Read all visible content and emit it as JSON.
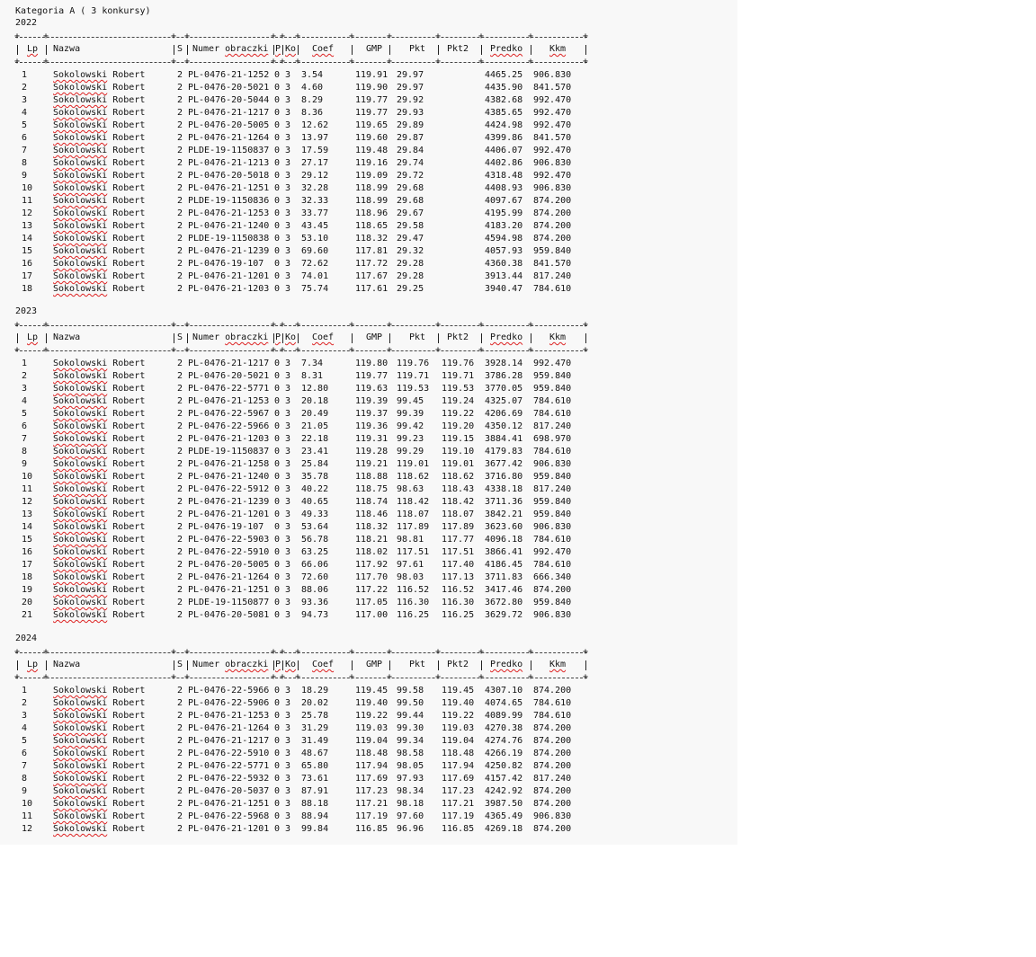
{
  "title": "Kategoria A ( 3 konkursy)",
  "headers": [
    "Lp",
    "Nazwa",
    "S",
    "Numer obraczki",
    "P",
    "Ko",
    "Coef",
    "GMP",
    "Pkt",
    "Pkt2",
    "Predko",
    "Kkm"
  ],
  "sections": [
    {
      "year": "2022",
      "rows": [
        [
          "1",
          "Sokolowski Robert",
          "2",
          "PL-0476-21-1252",
          "0",
          "3",
          "3.54",
          "119.91",
          "29.97",
          "",
          "4465.25",
          "906.830"
        ],
        [
          "2",
          "Sokolowski Robert",
          "2",
          "PL-0476-20-5021",
          "0",
          "3",
          "4.60",
          "119.90",
          "29.97",
          "",
          "4435.90",
          "841.570"
        ],
        [
          "3",
          "Sokolowski Robert",
          "2",
          "PL-0476-20-5044",
          "0",
          "3",
          "8.29",
          "119.77",
          "29.92",
          "",
          "4382.68",
          "992.470"
        ],
        [
          "4",
          "Sokolowski Robert",
          "2",
          "PL-0476-21-1217",
          "0",
          "3",
          "8.36",
          "119.77",
          "29.93",
          "",
          "4385.65",
          "992.470"
        ],
        [
          "5",
          "Sokolowski Robert",
          "2",
          "PL-0476-20-5005",
          "0",
          "3",
          "12.62",
          "119.65",
          "29.89",
          "",
          "4424.98",
          "992.470"
        ],
        [
          "6",
          "Sokolowski Robert",
          "2",
          "PL-0476-21-1264",
          "0",
          "3",
          "13.97",
          "119.60",
          "29.87",
          "",
          "4399.86",
          "841.570"
        ],
        [
          "7",
          "Sokolowski Robert",
          "2",
          "PLDE-19-1150837",
          "0",
          "3",
          "17.59",
          "119.48",
          "29.84",
          "",
          "4406.07",
          "992.470"
        ],
        [
          "8",
          "Sokolowski Robert",
          "2",
          "PL-0476-21-1213",
          "0",
          "3",
          "27.17",
          "119.16",
          "29.74",
          "",
          "4402.86",
          "906.830"
        ],
        [
          "9",
          "Sokolowski Robert",
          "2",
          "PL-0476-20-5018",
          "0",
          "3",
          "29.12",
          "119.09",
          "29.72",
          "",
          "4318.48",
          "992.470"
        ],
        [
          "10",
          "Sokolowski Robert",
          "2",
          "PL-0476-21-1251",
          "0",
          "3",
          "32.28",
          "118.99",
          "29.68",
          "",
          "4408.93",
          "906.830"
        ],
        [
          "11",
          "Sokolowski Robert",
          "2",
          "PLDE-19-1150836",
          "0",
          "3",
          "32.33",
          "118.99",
          "29.68",
          "",
          "4097.67",
          "874.200"
        ],
        [
          "12",
          "Sokolowski Robert",
          "2",
          "PL-0476-21-1253",
          "0",
          "3",
          "33.77",
          "118.96",
          "29.67",
          "",
          "4195.99",
          "874.200"
        ],
        [
          "13",
          "Sokolowski Robert",
          "2",
          "PL-0476-21-1240",
          "0",
          "3",
          "43.45",
          "118.65",
          "29.58",
          "",
          "4183.20",
          "874.200"
        ],
        [
          "14",
          "Sokolowski Robert",
          "2",
          "PLDE-19-1150838",
          "0",
          "3",
          "53.10",
          "118.32",
          "29.47",
          "",
          "4594.98",
          "874.200"
        ],
        [
          "15",
          "Sokolowski Robert",
          "2",
          "PL-0476-21-1239",
          "0",
          "3",
          "69.60",
          "117.81",
          "29.32",
          "",
          "4057.93",
          "959.840"
        ],
        [
          "16",
          "Sokolowski Robert",
          "2",
          "PL-0476-19-107",
          "0",
          "3",
          "72.62",
          "117.72",
          "29.28",
          "",
          "4360.38",
          "841.570"
        ],
        [
          "17",
          "Sokolowski Robert",
          "2",
          "PL-0476-21-1201",
          "0",
          "3",
          "74.01",
          "117.67",
          "29.28",
          "",
          "3913.44",
          "817.240"
        ],
        [
          "18",
          "Sokolowski Robert",
          "2",
          "PL-0476-21-1203",
          "0",
          "3",
          "75.74",
          "117.61",
          "29.25",
          "",
          "3940.47",
          "784.610"
        ]
      ]
    },
    {
      "year": "2023",
      "rows": [
        [
          "1",
          "Sokolowski Robert",
          "2",
          "PL-0476-21-1217",
          "0",
          "3",
          "7.34",
          "119.80",
          "119.76",
          "119.76",
          "3928.14",
          "992.470"
        ],
        [
          "2",
          "Sokolowski Robert",
          "2",
          "PL-0476-20-5021",
          "0",
          "3",
          "8.31",
          "119.77",
          "119.71",
          "119.71",
          "3786.28",
          "959.840"
        ],
        [
          "3",
          "Sokolowski Robert",
          "2",
          "PL-0476-22-5771",
          "0",
          "3",
          "12.80",
          "119.63",
          "119.53",
          "119.53",
          "3770.05",
          "959.840"
        ],
        [
          "4",
          "Sokolowski Robert",
          "2",
          "PL-0476-21-1253",
          "0",
          "3",
          "20.18",
          "119.39",
          "99.45",
          "119.24",
          "4325.07",
          "784.610"
        ],
        [
          "5",
          "Sokolowski Robert",
          "2",
          "PL-0476-22-5967",
          "0",
          "3",
          "20.49",
          "119.37",
          "99.39",
          "119.22",
          "4206.69",
          "784.610"
        ],
        [
          "6",
          "Sokolowski Robert",
          "2",
          "PL-0476-22-5966",
          "0",
          "3",
          "21.05",
          "119.36",
          "99.42",
          "119.20",
          "4350.12",
          "817.240"
        ],
        [
          "7",
          "Sokolowski Robert",
          "2",
          "PL-0476-21-1203",
          "0",
          "3",
          "22.18",
          "119.31",
          "99.23",
          "119.15",
          "3884.41",
          "698.970"
        ],
        [
          "8",
          "Sokolowski Robert",
          "2",
          "PLDE-19-1150837",
          "0",
          "3",
          "23.41",
          "119.28",
          "99.29",
          "119.10",
          "4179.83",
          "784.610"
        ],
        [
          "9",
          "Sokolowski Robert",
          "2",
          "PL-0476-21-1258",
          "0",
          "3",
          "25.84",
          "119.21",
          "119.01",
          "119.01",
          "3677.42",
          "906.830"
        ],
        [
          "10",
          "Sokolowski Robert",
          "2",
          "PL-0476-21-1240",
          "0",
          "3",
          "35.78",
          "118.88",
          "118.62",
          "118.62",
          "3716.80",
          "959.840"
        ],
        [
          "11",
          "Sokolowski Robert",
          "2",
          "PL-0476-22-5912",
          "0",
          "3",
          "40.22",
          "118.75",
          "98.63",
          "118.43",
          "4338.18",
          "817.240"
        ],
        [
          "12",
          "Sokolowski Robert",
          "2",
          "PL-0476-21-1239",
          "0",
          "3",
          "40.65",
          "118.74",
          "118.42",
          "118.42",
          "3711.36",
          "959.840"
        ],
        [
          "13",
          "Sokolowski Robert",
          "2",
          "PL-0476-21-1201",
          "0",
          "3",
          "49.33",
          "118.46",
          "118.07",
          "118.07",
          "3842.21",
          "959.840"
        ],
        [
          "14",
          "Sokolowski Robert",
          "2",
          "PL-0476-19-107",
          "0",
          "3",
          "53.64",
          "118.32",
          "117.89",
          "117.89",
          "3623.60",
          "906.830"
        ],
        [
          "15",
          "Sokolowski Robert",
          "2",
          "PL-0476-22-5903",
          "0",
          "3",
          "56.78",
          "118.21",
          "98.81",
          "117.77",
          "4096.18",
          "784.610"
        ],
        [
          "16",
          "Sokolowski Robert",
          "2",
          "PL-0476-22-5910",
          "0",
          "3",
          "63.25",
          "118.02",
          "117.51",
          "117.51",
          "3866.41",
          "992.470"
        ],
        [
          "17",
          "Sokolowski Robert",
          "2",
          "PL-0476-20-5005",
          "0",
          "3",
          "66.06",
          "117.92",
          "97.61",
          "117.40",
          "4186.45",
          "784.610"
        ],
        [
          "18",
          "Sokolowski Robert",
          "2",
          "PL-0476-21-1264",
          "0",
          "3",
          "72.60",
          "117.70",
          "98.03",
          "117.13",
          "3711.83",
          "666.340"
        ],
        [
          "19",
          "Sokolowski Robert",
          "2",
          "PL-0476-21-1251",
          "0",
          "3",
          "88.06",
          "117.22",
          "116.52",
          "116.52",
          "3417.46",
          "874.200"
        ],
        [
          "20",
          "Sokolowski Robert",
          "2",
          "PLDE-19-1150877",
          "0",
          "3",
          "93.36",
          "117.05",
          "116.30",
          "116.30",
          "3672.80",
          "959.840"
        ],
        [
          "21",
          "Sokolowski Robert",
          "2",
          "PL-0476-20-5081",
          "0",
          "3",
          "94.73",
          "117.00",
          "116.25",
          "116.25",
          "3629.72",
          "906.830"
        ]
      ]
    },
    {
      "year": "2024",
      "rows": [
        [
          "1",
          "Sokolowski Robert",
          "2",
          "PL-0476-22-5966",
          "0",
          "3",
          "18.29",
          "119.45",
          "99.58",
          "119.45",
          "4307.10",
          "874.200"
        ],
        [
          "2",
          "Sokolowski Robert",
          "2",
          "PL-0476-22-5906",
          "0",
          "3",
          "20.02",
          "119.40",
          "99.50",
          "119.40",
          "4074.65",
          "784.610"
        ],
        [
          "3",
          "Sokolowski Robert",
          "2",
          "PL-0476-21-1253",
          "0",
          "3",
          "25.78",
          "119.22",
          "99.44",
          "119.22",
          "4089.99",
          "784.610"
        ],
        [
          "4",
          "Sokolowski Robert",
          "2",
          "PL-0476-21-1264",
          "0",
          "3",
          "31.29",
          "119.03",
          "99.30",
          "119.03",
          "4270.38",
          "874.200"
        ],
        [
          "5",
          "Sokolowski Robert",
          "2",
          "PL-0476-21-1217",
          "0",
          "3",
          "31.49",
          "119.04",
          "99.34",
          "119.04",
          "4274.76",
          "874.200"
        ],
        [
          "6",
          "Sokolowski Robert",
          "2",
          "PL-0476-22-5910",
          "0",
          "3",
          "48.67",
          "118.48",
          "98.58",
          "118.48",
          "4266.19",
          "874.200"
        ],
        [
          "7",
          "Sokolowski Robert",
          "2",
          "PL-0476-22-5771",
          "0",
          "3",
          "65.80",
          "117.94",
          "98.05",
          "117.94",
          "4250.82",
          "874.200"
        ],
        [
          "8",
          "Sokolowski Robert",
          "2",
          "PL-0476-22-5932",
          "0",
          "3",
          "73.61",
          "117.69",
          "97.93",
          "117.69",
          "4157.42",
          "817.240"
        ],
        [
          "9",
          "Sokolowski Robert",
          "2",
          "PL-0476-20-5037",
          "0",
          "3",
          "87.91",
          "117.23",
          "98.34",
          "117.23",
          "4242.92",
          "874.200"
        ],
        [
          "10",
          "Sokolowski Robert",
          "2",
          "PL-0476-21-1251",
          "0",
          "3",
          "88.18",
          "117.21",
          "98.18",
          "117.21",
          "3987.50",
          "874.200"
        ],
        [
          "11",
          "Sokolowski Robert",
          "2",
          "PL-0476-22-5968",
          "0",
          "3",
          "88.94",
          "117.19",
          "97.60",
          "117.19",
          "4365.49",
          "906.830"
        ],
        [
          "12",
          "Sokolowski Robert",
          "2",
          "PL-0476-21-1201",
          "0",
          "3",
          "99.84",
          "116.85",
          "96.96",
          "116.85",
          "4269.18",
          "874.200"
        ]
      ]
    }
  ]
}
